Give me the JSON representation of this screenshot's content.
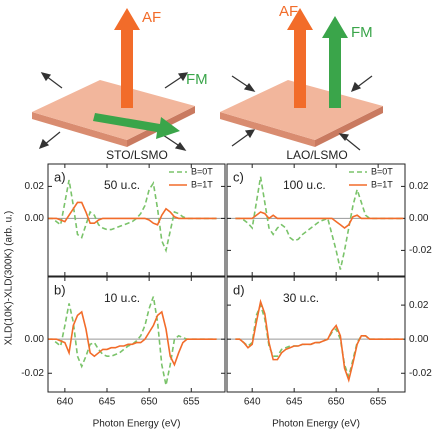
{
  "ylabel": "XLD(10K)-XLD(300K) (arb. u.)",
  "diagrams": [
    {
      "title": "STO/LSMO",
      "labels": [
        "AF",
        "FM"
      ]
    },
    {
      "title": "LAO/LSMO",
      "labels": [
        "AF",
        "FM"
      ]
    }
  ],
  "chart_data": [
    {
      "type": "line",
      "panel_label": "a)",
      "annotation": "50 u.c.",
      "legend": "upper right",
      "ytick_side": "left",
      "xlim": [
        638,
        659
      ],
      "xticks": [
        640,
        645,
        650,
        655
      ],
      "ylim": [
        -0.036,
        0.034
      ],
      "yticks": [
        0.02,
        {
          "value": 0,
          "label": "0.00"
        }
      ],
      "x": [
        638,
        638.5,
        639,
        639.5,
        640,
        640.5,
        641,
        641.5,
        642,
        642.5,
        643,
        643.5,
        644,
        644.5,
        645,
        645.5,
        646,
        646.5,
        647,
        647.5,
        648,
        648.5,
        649,
        649.5,
        650,
        650.5,
        651,
        651.5,
        652,
        652.5,
        653,
        653.5,
        654,
        654.5,
        655,
        655.5,
        656,
        656.5,
        657,
        657.5,
        658
      ],
      "series": [
        {
          "name": "B=0T",
          "color": "#7ac36a",
          "linestyle": "dashed",
          "values": [
            0,
            0,
            -0.002,
            -0.004,
            0.01,
            0.024,
            0.008,
            -0.01,
            -0.012,
            -0.004,
            0.004,
            0.002,
            -0.004,
            -0.006,
            -0.007,
            -0.007,
            -0.006,
            -0.005,
            -0.004,
            -0.003,
            -0.002,
            0,
            0.003,
            0.008,
            0.018,
            0.022,
            0.006,
            -0.014,
            -0.02,
            -0.008,
            0.004,
            0.003,
            0.001,
            0,
            0,
            0,
            0,
            0,
            0,
            0,
            0
          ]
        },
        {
          "name": "B=1T",
          "color": "#f26c2a",
          "linestyle": "solid",
          "values": [
            0,
            0,
            0,
            -0.001,
            -0.002,
            0.002,
            0.006,
            0.01,
            0.01,
            0.004,
            -0.003,
            -0.003,
            -0.001,
            0,
            0,
            0,
            0,
            0,
            0,
            0,
            0,
            0,
            0,
            0,
            -0.001,
            -0.003,
            -0.004,
            0.002,
            0.006,
            0.004,
            0.001,
            0,
            0,
            0,
            0,
            0,
            0,
            0,
            0,
            0,
            0
          ]
        }
      ]
    },
    {
      "type": "line",
      "panel_label": "b)",
      "annotation": "10 u.c.",
      "ytick_side": "left",
      "xlabel": "Photon Energy (eV)",
      "xlim": [
        638,
        659
      ],
      "xticks": [
        640,
        645,
        650,
        655
      ],
      "ylim": [
        -0.031,
        0.0365
      ],
      "yticks": [
        {
          "value": 0,
          "label": "0.00"
        },
        -0.02
      ],
      "x": [
        638,
        638.5,
        639,
        639.5,
        640,
        640.5,
        641,
        641.5,
        642,
        642.5,
        643,
        643.5,
        644,
        644.5,
        645,
        645.5,
        646,
        646.5,
        647,
        647.5,
        648,
        648.5,
        649,
        649.5,
        650,
        650.5,
        651,
        651.5,
        652,
        652.5,
        653,
        653.5,
        654,
        654.5,
        655,
        655.5,
        656,
        656.5,
        657,
        657.5,
        658
      ],
      "series": [
        {
          "name": "B=0T",
          "color": "#7ac36a",
          "linestyle": "dashed",
          "values": [
            0,
            0,
            -0.002,
            -0.004,
            0.008,
            0.021,
            0.01,
            -0.01,
            -0.016,
            -0.01,
            -0.003,
            -0.002,
            -0.006,
            -0.009,
            -0.01,
            -0.01,
            -0.009,
            -0.008,
            -0.006,
            -0.004,
            -0.003,
            -0.001,
            0.002,
            0.008,
            0.018,
            0.025,
            0.01,
            -0.015,
            -0.027,
            -0.015,
            0,
            0.002,
            0.001,
            0,
            0,
            0,
            0,
            0,
            0,
            0,
            0
          ]
        },
        {
          "name": "B=1T",
          "color": "#f26c2a",
          "linestyle": "solid",
          "values": [
            0,
            0,
            0,
            -0.001,
            -0.002,
            -0.008,
            0.008,
            0.014,
            0.016,
            0.006,
            -0.008,
            -0.01,
            -0.008,
            -0.006,
            -0.006,
            -0.005,
            -0.005,
            -0.004,
            -0.004,
            -0.003,
            -0.003,
            -0.002,
            -0.002,
            0,
            0.004,
            0.008,
            0.014,
            0.016,
            0.006,
            -0.01,
            -0.015,
            -0.008,
            -0.002,
            0,
            0,
            0,
            0,
            0,
            0,
            0,
            0
          ]
        }
      ]
    },
    {
      "type": "line",
      "panel_label": "c)",
      "annotation": "100 u.c.",
      "legend": "upper right",
      "ytick_side": "right",
      "xlim": [
        637,
        658.2
      ],
      "xticks": [
        640,
        645,
        650,
        655
      ],
      "ylim": [
        -0.036,
        0.034
      ],
      "yticks": [
        0.02,
        {
          "value": 0,
          "label": "0.00"
        },
        -0.02
      ],
      "x": [
        638,
        638.5,
        639,
        639.5,
        640,
        640.5,
        641,
        641.5,
        642,
        642.5,
        643,
        643.5,
        644,
        644.5,
        645,
        645.5,
        646,
        646.5,
        647,
        647.5,
        648,
        648.5,
        649,
        649.5,
        650,
        650.5,
        651,
        651.5,
        652,
        652.5,
        653,
        653.5,
        654,
        654.5,
        655,
        655.5,
        656,
        656.5,
        657,
        657.5,
        658
      ],
      "series": [
        {
          "name": "B=0T",
          "color": "#7ac36a",
          "linestyle": "dashed",
          "values": [
            0,
            0,
            -0.001,
            -0.003,
            -0.006,
            0.01,
            0.026,
            0.01,
            -0.006,
            -0.01,
            -0.006,
            -0.004,
            -0.006,
            -0.012,
            -0.014,
            -0.013,
            -0.01,
            -0.008,
            -0.006,
            -0.004,
            -0.002,
            -0.001,
            0,
            -0.01,
            -0.02,
            -0.032,
            -0.02,
            -0.006,
            0.008,
            0.018,
            0.01,
            0.002,
            0,
            0,
            0,
            0,
            0,
            0,
            0,
            0,
            0
          ]
        },
        {
          "name": "B=1T",
          "color": "#f26c2a",
          "linestyle": "solid",
          "values": [
            0,
            0,
            0,
            0,
            0,
            0.002,
            0.004,
            0.003,
            0,
            0.002,
            0,
            0,
            0,
            0,
            0,
            0,
            0,
            0,
            0,
            0,
            0,
            0,
            0,
            0,
            -0.002,
            -0.004,
            -0.006,
            -0.004,
            0.001,
            0.002,
            0,
            0,
            0,
            0,
            0,
            0,
            0,
            0,
            0,
            0,
            0
          ]
        }
      ]
    },
    {
      "type": "line",
      "panel_label": "d)",
      "annotation": "30 u.c.",
      "ytick_side": "right",
      "xlabel": "Photon Energy (eV)",
      "xlim": [
        637,
        658.2
      ],
      "xticks": [
        640,
        645,
        650,
        655
      ],
      "ylim": [
        -0.031,
        0.0365
      ],
      "yticks": [
        0.02,
        {
          "value": 0,
          "label": "0.00"
        },
        -0.02
      ],
      "x": [
        638,
        638.5,
        639,
        639.5,
        640,
        640.5,
        641,
        641.5,
        642,
        642.5,
        643,
        643.5,
        644,
        644.5,
        645,
        645.5,
        646,
        646.5,
        647,
        647.5,
        648,
        648.5,
        649,
        649.5,
        650,
        650.5,
        651,
        651.5,
        652,
        652.5,
        653,
        653.5,
        654,
        654.5,
        655,
        655.5,
        656,
        656.5,
        657,
        657.5,
        658
      ],
      "series": [
        {
          "name": "B=0T",
          "color": "#7ac36a",
          "linestyle": "dashed",
          "values": [
            0,
            0,
            -0.002,
            -0.004,
            -0.002,
            0.014,
            0.02,
            0.012,
            -0.004,
            -0.01,
            -0.01,
            -0.006,
            -0.005,
            -0.004,
            -0.004,
            -0.004,
            -0.003,
            -0.003,
            -0.003,
            -0.002,
            -0.002,
            -0.001,
            0,
            0.004,
            0.006,
            0,
            -0.015,
            -0.022,
            -0.012,
            -0.002,
            0.002,
            0.002,
            0,
            0,
            0,
            0,
            0,
            0,
            0,
            0,
            0
          ]
        },
        {
          "name": "B=1T",
          "color": "#f26c2a",
          "linestyle": "solid",
          "values": [
            0,
            0,
            -0.002,
            -0.005,
            -0.003,
            0.01,
            0.022,
            0.015,
            -0.002,
            -0.012,
            -0.012,
            -0.008,
            -0.006,
            -0.005,
            -0.004,
            -0.004,
            -0.003,
            -0.003,
            -0.003,
            -0.002,
            -0.002,
            -0.001,
            0,
            0.005,
            0.008,
            0.002,
            -0.017,
            -0.024,
            -0.014,
            -0.003,
            0.002,
            0.002,
            0,
            0,
            0,
            0,
            0,
            0,
            0,
            0,
            0
          ]
        }
      ]
    }
  ]
}
